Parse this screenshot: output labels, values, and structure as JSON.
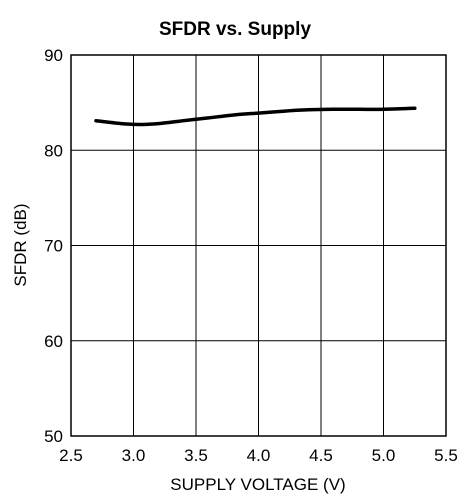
{
  "chart_data": {
    "type": "line",
    "title": "SFDR vs. Supply",
    "xlabel": "SUPPLY VOLTAGE (V)",
    "ylabel": "SFDR (dB)",
    "xlim": [
      2.5,
      5.5
    ],
    "ylim": [
      50,
      90
    ],
    "xticks": [
      "2.5",
      "3.0",
      "3.5",
      "4.0",
      "4.5",
      "5.0",
      "5.5"
    ],
    "yticks": [
      "50",
      "60",
      "70",
      "80",
      "90"
    ],
    "grid": true,
    "series": [
      {
        "x": [
          2.7,
          2.9,
          3.05,
          3.2,
          3.4,
          3.6,
          3.8,
          4.0,
          4.2,
          4.4,
          4.6,
          4.8,
          5.0,
          5.25
        ],
        "y": [
          83.1,
          82.8,
          82.7,
          82.8,
          83.1,
          83.4,
          83.7,
          83.9,
          84.1,
          84.25,
          84.3,
          84.3,
          84.3,
          84.4
        ]
      }
    ],
    "colors": {
      "line": "#000000",
      "grid": "#000000"
    }
  }
}
